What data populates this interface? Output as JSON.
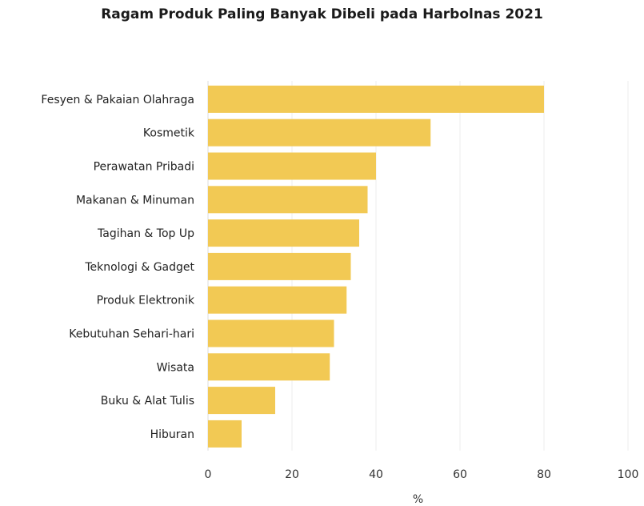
{
  "chart_data": {
    "type": "bar",
    "orientation": "horizontal",
    "title": "Ragam Produk Paling Banyak Dibeli pada Harbolnas 2021",
    "categories": [
      "Fesyen & Pakaian Olahraga",
      "Kosmetik",
      "Perawatan Pribadi",
      "Makanan & Minuman",
      "Tagihan & Top Up",
      "Teknologi & Gadget",
      "Produk Elektronik",
      "Kebutuhan Sehari-hari",
      "Wisata",
      "Buku & Alat Tulis",
      "Hiburan"
    ],
    "values": [
      80,
      53,
      40,
      38,
      36,
      34,
      33,
      30,
      29,
      16,
      8
    ],
    "xlabel": "%",
    "ylabel": "",
    "xlim": [
      0,
      100
    ],
    "xticks": [
      "0",
      "20",
      "40",
      "60",
      "80",
      "100"
    ],
    "grid": true,
    "bar_color": "#f2c954",
    "grid_color": "#eeeeee"
  }
}
